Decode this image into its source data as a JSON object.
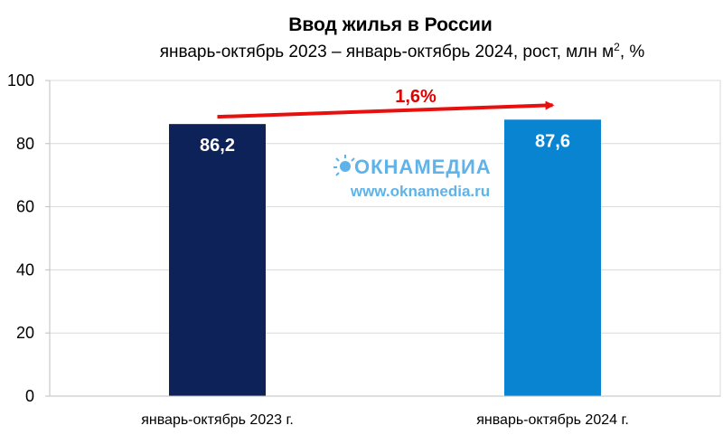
{
  "chart_data": {
    "type": "bar",
    "title": "Ввод жилья в России",
    "subtitle": {
      "text": "январь-октябрь 2023 – январь-октябрь 2024, рост, млн м",
      "sup": "2",
      "suffix": ", %"
    },
    "categories": [
      "январь-октябрь 2023 г.",
      "январь-октябрь 2024 г."
    ],
    "values": [
      86.2,
      87.6
    ],
    "value_labels": [
      "86,2",
      "87,6"
    ],
    "colors": [
      "#0d2259",
      "#0984d0"
    ],
    "ylim": [
      0,
      100
    ],
    "yticks": [
      0,
      20,
      40,
      60,
      80,
      100
    ],
    "grid": true,
    "annotation": {
      "text": "1,6%",
      "color": "#e8100f"
    }
  },
  "watermark": {
    "logo": "ОКНАМЕДИА",
    "url": "www.oknamedia.ru"
  }
}
